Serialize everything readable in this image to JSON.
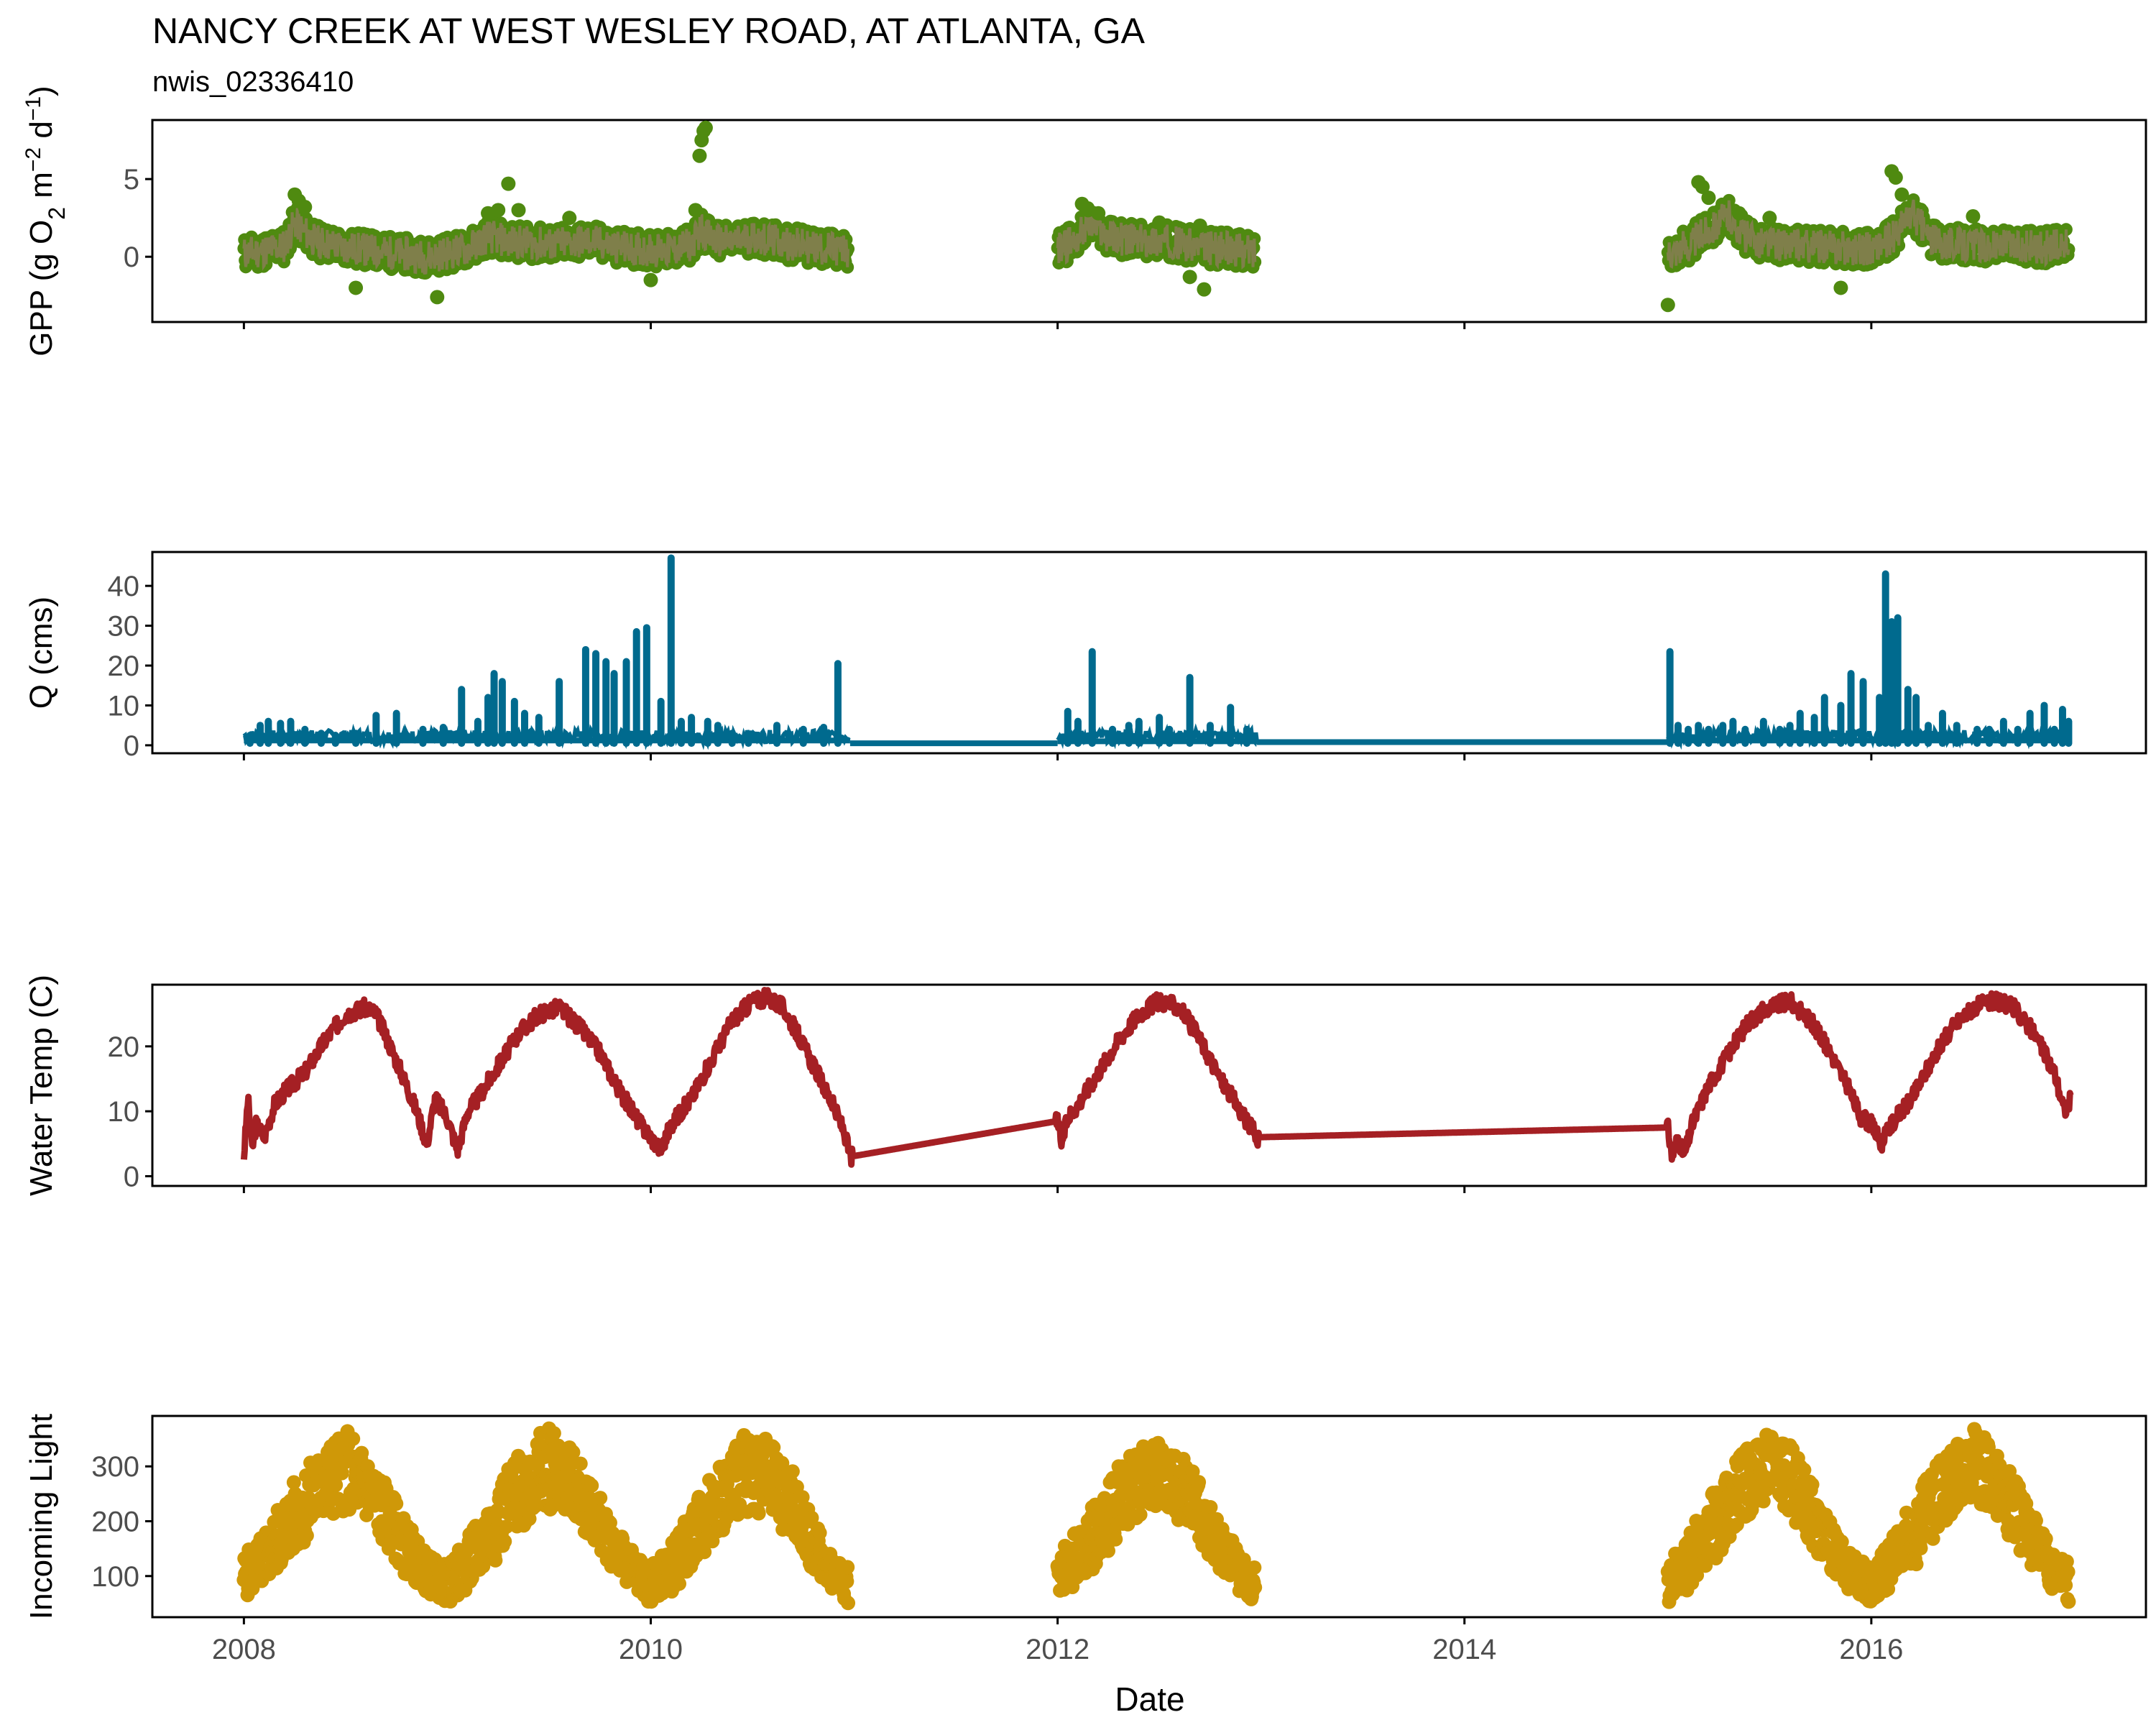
{
  "figure": {
    "title": "NANCY CREEK AT WEST WESLEY ROAD, AT ATLANTA, GA",
    "subtitle": "nwis_02336410",
    "xlabel": "Date"
  },
  "colors": {
    "gpp": "#4f8a10",
    "gpp_line": "#7f7f4a",
    "q": "#006a8e",
    "temp": "#a52024",
    "light": "#cf9808",
    "axis": "#000000",
    "tick_text": "#4d4d4d"
  },
  "chart_data": [
    {
      "type": "scatter",
      "name": "gpp",
      "ylabel_parts": [
        "GPP (g  O",
        "2",
        " m",
        "−2",
        " d",
        "−1",
        ")"
      ],
      "ylim": [
        -4.2,
        8.8
      ],
      "yticks": [
        0,
        5
      ],
      "ytick_labels": [
        "0",
        "5"
      ],
      "xlim": [
        2007.55,
        2017.35
      ],
      "xticks": [
        2008,
        2010,
        2012,
        2014,
        2016
      ],
      "xtick_labels": [
        "2008",
        "2010",
        "2012",
        "2014",
        "2016"
      ],
      "segments": [
        {
          "x": [
            2008.0,
            2008.1,
            2008.2,
            2008.25,
            2008.35,
            2008.5,
            2008.7,
            2008.9,
            2009.1,
            2009.2,
            2009.3,
            2009.5,
            2009.7,
            2009.9,
            2010.1,
            2010.2,
            2010.25,
            2010.3,
            2010.4,
            2010.5,
            2010.6,
            2010.8,
            2010.97
          ],
          "y": [
            0.2,
            0.4,
            0.7,
            2.2,
            1.0,
            0.6,
            0.3,
            0.0,
            0.5,
            1.3,
            1.0,
            0.8,
            1.0,
            0.5,
            0.4,
            0.8,
            1.8,
            1.1,
            0.9,
            1.3,
            1.0,
            0.6,
            0.4
          ]
        },
        {
          "x": [
            2012.0,
            2012.1,
            2012.15,
            2012.25,
            2012.4,
            2012.55,
            2012.7,
            2012.85,
            2012.97
          ],
          "y": [
            0.4,
            1.2,
            2.2,
            1.3,
            1.0,
            1.0,
            0.6,
            0.5,
            0.3
          ]
        },
        {
          "x": [
            2015.0,
            2015.1,
            2015.2,
            2015.3,
            2015.4,
            2015.55,
            2015.7,
            2015.85,
            2016.0,
            2016.1,
            2016.2,
            2016.3,
            2016.45,
            2016.6,
            2016.8,
            2016.97
          ],
          "y": [
            0.4,
            0.7,
            1.8,
            2.6,
            1.1,
            0.8,
            0.7,
            0.6,
            0.5,
            1.1,
            2.8,
            1.0,
            0.8,
            0.7,
            0.6,
            0.7
          ]
        }
      ],
      "points": {
        "x": [
          2008.25,
          2008.27,
          2008.3,
          2008.55,
          2008.95,
          2009.2,
          2009.25,
          2009.3,
          2009.35,
          2009.6,
          2010.0,
          2010.22,
          2010.24,
          2010.25,
          2010.26,
          2010.27,
          2012.12,
          2012.15,
          2012.2,
          2012.5,
          2012.65,
          2012.7,
          2012.72,
          2015.0,
          2015.15,
          2015.17,
          2015.2,
          2015.35,
          2015.5,
          2015.85,
          2016.1,
          2016.12,
          2016.15,
          2016.5
        ],
        "y": [
          4.0,
          3.6,
          3.2,
          -2.0,
          -2.6,
          2.8,
          3.0,
          4.7,
          3.0,
          2.5,
          -1.5,
          3.0,
          6.5,
          7.5,
          8.1,
          8.3,
          3.4,
          3.0,
          2.8,
          2.2,
          -1.3,
          2.0,
          -2.1,
          -3.1,
          4.8,
          4.5,
          3.8,
          2.8,
          2.5,
          -2.0,
          5.5,
          5.1,
          4.0,
          2.6
        ]
      }
    },
    {
      "type": "line",
      "name": "q",
      "ylabel": "Q (cms)",
      "ylim": [
        -2.0,
        48.5
      ],
      "yticks": [
        0,
        10,
        20,
        30,
        40
      ],
      "ytick_labels": [
        "0",
        "10",
        "20",
        "30",
        "40"
      ],
      "xlim": [
        2007.55,
        2017.35
      ],
      "xticks": [
        2008,
        2010,
        2012,
        2014,
        2016
      ],
      "xtick_labels": [
        "2008",
        "2010",
        "2012",
        "2014",
        "2016"
      ],
      "spikes": {
        "x": [
          2008.03,
          2008.08,
          2008.12,
          2008.18,
          2008.23,
          2008.3,
          2008.38,
          2008.45,
          2008.55,
          2008.65,
          2008.75,
          2008.88,
          2008.98,
          2009.07,
          2009.15,
          2009.2,
          2009.23,
          2009.27,
          2009.33,
          2009.38,
          2009.45,
          2009.55,
          2009.68,
          2009.73,
          2009.78,
          2009.82,
          2009.88,
          2009.93,
          2009.98,
          2010.05,
          2010.1,
          2010.15,
          2010.2,
          2010.28,
          2010.33,
          2010.4,
          2010.48,
          2010.62,
          2010.75,
          2010.85,
          2010.92,
          2012.05,
          2012.1,
          2012.17,
          2012.27,
          2012.35,
          2012.4,
          2012.5,
          2012.55,
          2012.65,
          2012.75,
          2012.85,
          2012.93,
          2015.01,
          2015.05,
          2015.1,
          2015.15,
          2015.2,
          2015.27,
          2015.32,
          2015.38,
          2015.47,
          2015.55,
          2015.6,
          2015.65,
          2015.72,
          2015.77,
          2015.85,
          2015.9,
          2015.96,
          2016.04,
          2016.07,
          2016.1,
          2016.13,
          2016.18,
          2016.22,
          2016.28,
          2016.35,
          2016.42,
          2016.52,
          2016.58,
          2016.65,
          2016.72,
          2016.78,
          2016.85,
          2016.9,
          2016.94,
          2016.97
        ],
        "y": [
          2.5,
          5.0,
          6.0,
          5.5,
          6.0,
          4.0,
          3.0,
          2.5,
          3.0,
          7.5,
          8.0,
          4.0,
          4.5,
          14.0,
          6.0,
          12.0,
          18.0,
          16.0,
          11.0,
          8.0,
          7.0,
          16.0,
          24.0,
          23.0,
          21.0,
          18.0,
          21.0,
          28.5,
          29.5,
          11.0,
          47.0,
          6.0,
          7.0,
          6.0,
          5.0,
          3.0,
          2.5,
          5.0,
          4.0,
          4.5,
          20.5,
          8.5,
          6.0,
          23.5,
          4.0,
          5.0,
          6.0,
          7.0,
          4.0,
          17.0,
          5.0,
          9.5,
          4.0,
          23.5,
          5.0,
          4.0,
          5.0,
          4.0,
          5.0,
          6.0,
          4.0,
          6.0,
          4.0,
          5.0,
          8.0,
          7.0,
          12.0,
          10.0,
          18.0,
          16.0,
          12.0,
          43.0,
          31.0,
          32.0,
          14.0,
          12.0,
          5.0,
          8.0,
          5.0,
          4.0,
          4.0,
          6.0,
          4.0,
          8.0,
          10.0,
          4.0,
          9.0,
          6.0
        ]
      },
      "baseline": [
        {
          "x": [
            2008.0,
            2010.98
          ],
          "y": [
            1.2,
            1.2
          ]
        },
        {
          "x": [
            2010.98,
            2012.0
          ],
          "y": [
            0.5,
            0.5
          ]
        },
        {
          "x": [
            2012.0,
            2012.98
          ],
          "y": [
            1.0,
            1.0
          ]
        },
        {
          "x": [
            2012.98,
            2015.0
          ],
          "y": [
            0.8,
            0.8
          ]
        },
        {
          "x": [
            2015.0,
            2016.98
          ],
          "y": [
            1.2,
            1.2
          ]
        }
      ]
    },
    {
      "type": "line",
      "name": "temp",
      "ylabel": "Water Temp (C)",
      "ylim": [
        -1.5,
        29.5
      ],
      "yticks": [
        0,
        10,
        20
      ],
      "ytick_labels": [
        "0",
        "10",
        "20"
      ],
      "xlim": [
        2007.55,
        2017.35
      ],
      "xticks": [
        2008,
        2010,
        2012,
        2014,
        2016
      ],
      "xtick_labels": [
        "2008",
        "2010",
        "2012",
        "2014",
        "2016"
      ],
      "x": [
        2008.0,
        2008.02,
        2008.04,
        2008.06,
        2008.1,
        2008.15,
        2008.2,
        2008.3,
        2008.4,
        2008.5,
        2008.6,
        2008.65,
        2008.72,
        2008.8,
        2008.85,
        2008.9,
        2008.94,
        2009.0,
        2009.05,
        2009.1,
        2009.15,
        2009.25,
        2009.35,
        2009.45,
        2009.55,
        2009.65,
        2009.75,
        2009.85,
        2009.95,
        2010.0,
        2010.05,
        2010.1,
        2010.2,
        2010.3,
        2010.4,
        2010.5,
        2010.58,
        2010.65,
        2010.72,
        2010.8,
        2010.88,
        2010.95,
        2010.98,
        2012.0,
        2012.02,
        2012.05,
        2012.1,
        2012.2,
        2012.3,
        2012.4,
        2012.5,
        2012.6,
        2012.7,
        2012.8,
        2012.88,
        2012.94,
        2012.98,
        2015.0,
        2015.02,
        2015.05,
        2015.08,
        2015.12,
        2015.2,
        2015.3,
        2015.4,
        2015.5,
        2015.6,
        2015.7,
        2015.8,
        2015.88,
        2015.95,
        2016.0,
        2016.05,
        2016.1,
        2016.2,
        2016.3,
        2016.4,
        2016.5,
        2016.6,
        2016.7,
        2016.8,
        2016.9,
        2016.95,
        2016.98
      ],
      "y": [
        3.0,
        12.0,
        4.0,
        8.0,
        6.0,
        11.0,
        13.0,
        16.0,
        21.0,
        25.0,
        26.0,
        25.0,
        20.0,
        14.0,
        10.0,
        5.0,
        12.0,
        9.0,
        4.0,
        10.0,
        12.0,
        17.0,
        22.0,
        25.0,
        26.0,
        23.0,
        19.0,
        13.0,
        8.0,
        6.0,
        4.0,
        8.0,
        12.0,
        18.0,
        24.0,
        27.0,
        27.5,
        26.0,
        22.0,
        17.0,
        12.0,
        7.0,
        3.0,
        8.5,
        5.0,
        9.0,
        11.0,
        16.0,
        21.0,
        25.0,
        27.0,
        26.0,
        21.0,
        15.0,
        11.0,
        8.0,
        6.0,
        7.5,
        3.0,
        6.0,
        3.0,
        8.0,
        14.0,
        19.0,
        24.0,
        26.0,
        27.0,
        24.0,
        19.0,
        14.0,
        9.0,
        8.0,
        5.0,
        8.0,
        12.0,
        18.0,
        23.0,
        26.0,
        27.0,
        26.0,
        22.0,
        16.0,
        10.0,
        12.0
      ]
    },
    {
      "type": "scatter",
      "name": "light",
      "ylabel": "Incoming Light",
      "ylim": [
        25,
        392
      ],
      "yticks": [
        100,
        200,
        300
      ],
      "ytick_labels": [
        "100",
        "200",
        "300"
      ],
      "xlim": [
        2007.55,
        2017.35
      ],
      "xticks": [
        2008,
        2010,
        2012,
        2014,
        2016
      ],
      "xtick_labels": [
        "2008",
        "2010",
        "2012",
        "2014",
        "2016"
      ],
      "envelopes": [
        {
          "x": [
            2008.0,
            2008.1,
            2008.2,
            2008.3,
            2008.4,
            2008.5,
            2008.6,
            2008.7,
            2008.8,
            2008.9,
            2009.0,
            2009.1,
            2009.2,
            2009.3,
            2009.4,
            2009.5,
            2009.6,
            2009.7,
            2009.8,
            2009.9,
            2010.0,
            2010.1,
            2010.2,
            2010.3,
            2010.4,
            2010.5,
            2010.6,
            2010.7,
            2010.8,
            2010.9,
            2010.97
          ],
          "low": [
            60,
            80,
            120,
            160,
            200,
            220,
            200,
            150,
            100,
            70,
            50,
            70,
            110,
            160,
            200,
            220,
            210,
            170,
            120,
            80,
            50,
            70,
            110,
            160,
            200,
            220,
            200,
            160,
            110,
            70,
            50
          ],
          "high": [
            140,
            180,
            250,
            300,
            340,
            370,
            330,
            270,
            200,
            140,
            120,
            170,
            240,
            300,
            345,
            375,
            340,
            280,
            210,
            150,
            120,
            160,
            230,
            290,
            340,
            370,
            340,
            290,
            200,
            140,
            120
          ]
        },
        {
          "x": [
            2012.0,
            2012.1,
            2012.2,
            2012.3,
            2012.4,
            2012.5,
            2012.6,
            2012.7,
            2012.8,
            2012.9,
            2012.97
          ],
          "low": [
            60,
            80,
            120,
            170,
            210,
            230,
            200,
            160,
            110,
            70,
            50
          ],
          "high": [
            140,
            190,
            250,
            300,
            340,
            350,
            330,
            270,
            200,
            140,
            120
          ]
        },
        {
          "x": [
            2015.0,
            2015.1,
            2015.2,
            2015.3,
            2015.4,
            2015.5,
            2015.6,
            2015.7,
            2015.8,
            2015.9,
            2016.0,
            2016.1,
            2016.2,
            2016.3,
            2016.4,
            2016.5,
            2016.6,
            2016.7,
            2016.8,
            2016.9,
            2016.97
          ],
          "low": [
            50,
            70,
            110,
            160,
            210,
            240,
            210,
            160,
            110,
            70,
            50,
            70,
            110,
            160,
            210,
            240,
            210,
            160,
            110,
            70,
            50
          ],
          "high": [
            130,
            180,
            240,
            300,
            340,
            365,
            340,
            280,
            200,
            140,
            120,
            170,
            240,
            300,
            345,
            370,
            340,
            290,
            210,
            140,
            130
          ]
        }
      ]
    }
  ]
}
